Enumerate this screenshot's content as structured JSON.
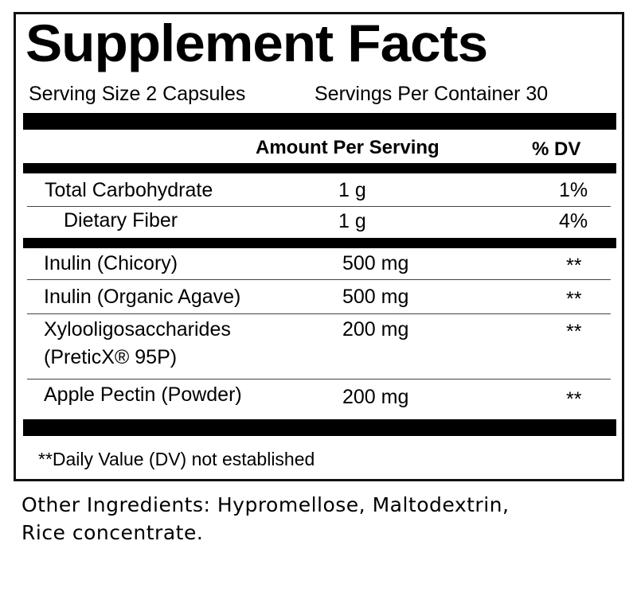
{
  "title": "Supplement Facts",
  "serving_size": "Serving Size 2 Capsules",
  "servings_per_container": "Servings Per Container 30",
  "header": {
    "amount": "Amount Per Serving",
    "dv": "% DV"
  },
  "rows": [
    {
      "name": "Total Carbohydrate",
      "amount": "1 g",
      "dv": "1%"
    },
    {
      "name": "Dietary Fiber",
      "amount": "1 g",
      "dv": "4%"
    },
    {
      "name": "Inulin (Chicory)",
      "amount": "500 mg",
      "dv": "**"
    },
    {
      "name": "Inulin (Organic Agave)",
      "amount": "500 mg",
      "dv": "**"
    },
    {
      "name": "Xylooligosaccharides",
      "name_line2": "(PreticX® 95P)",
      "amount": "200 mg",
      "dv": "**"
    },
    {
      "name": "Apple Pectin (Powder)",
      "amount": "200 mg",
      "dv": "**"
    }
  ],
  "footnote": "**Daily Value (DV) not established",
  "other_ingredients": {
    "line1": "Other Ingredients: Hypromellose, Maltodextrin,",
    "line2": "Rice concentrate."
  }
}
